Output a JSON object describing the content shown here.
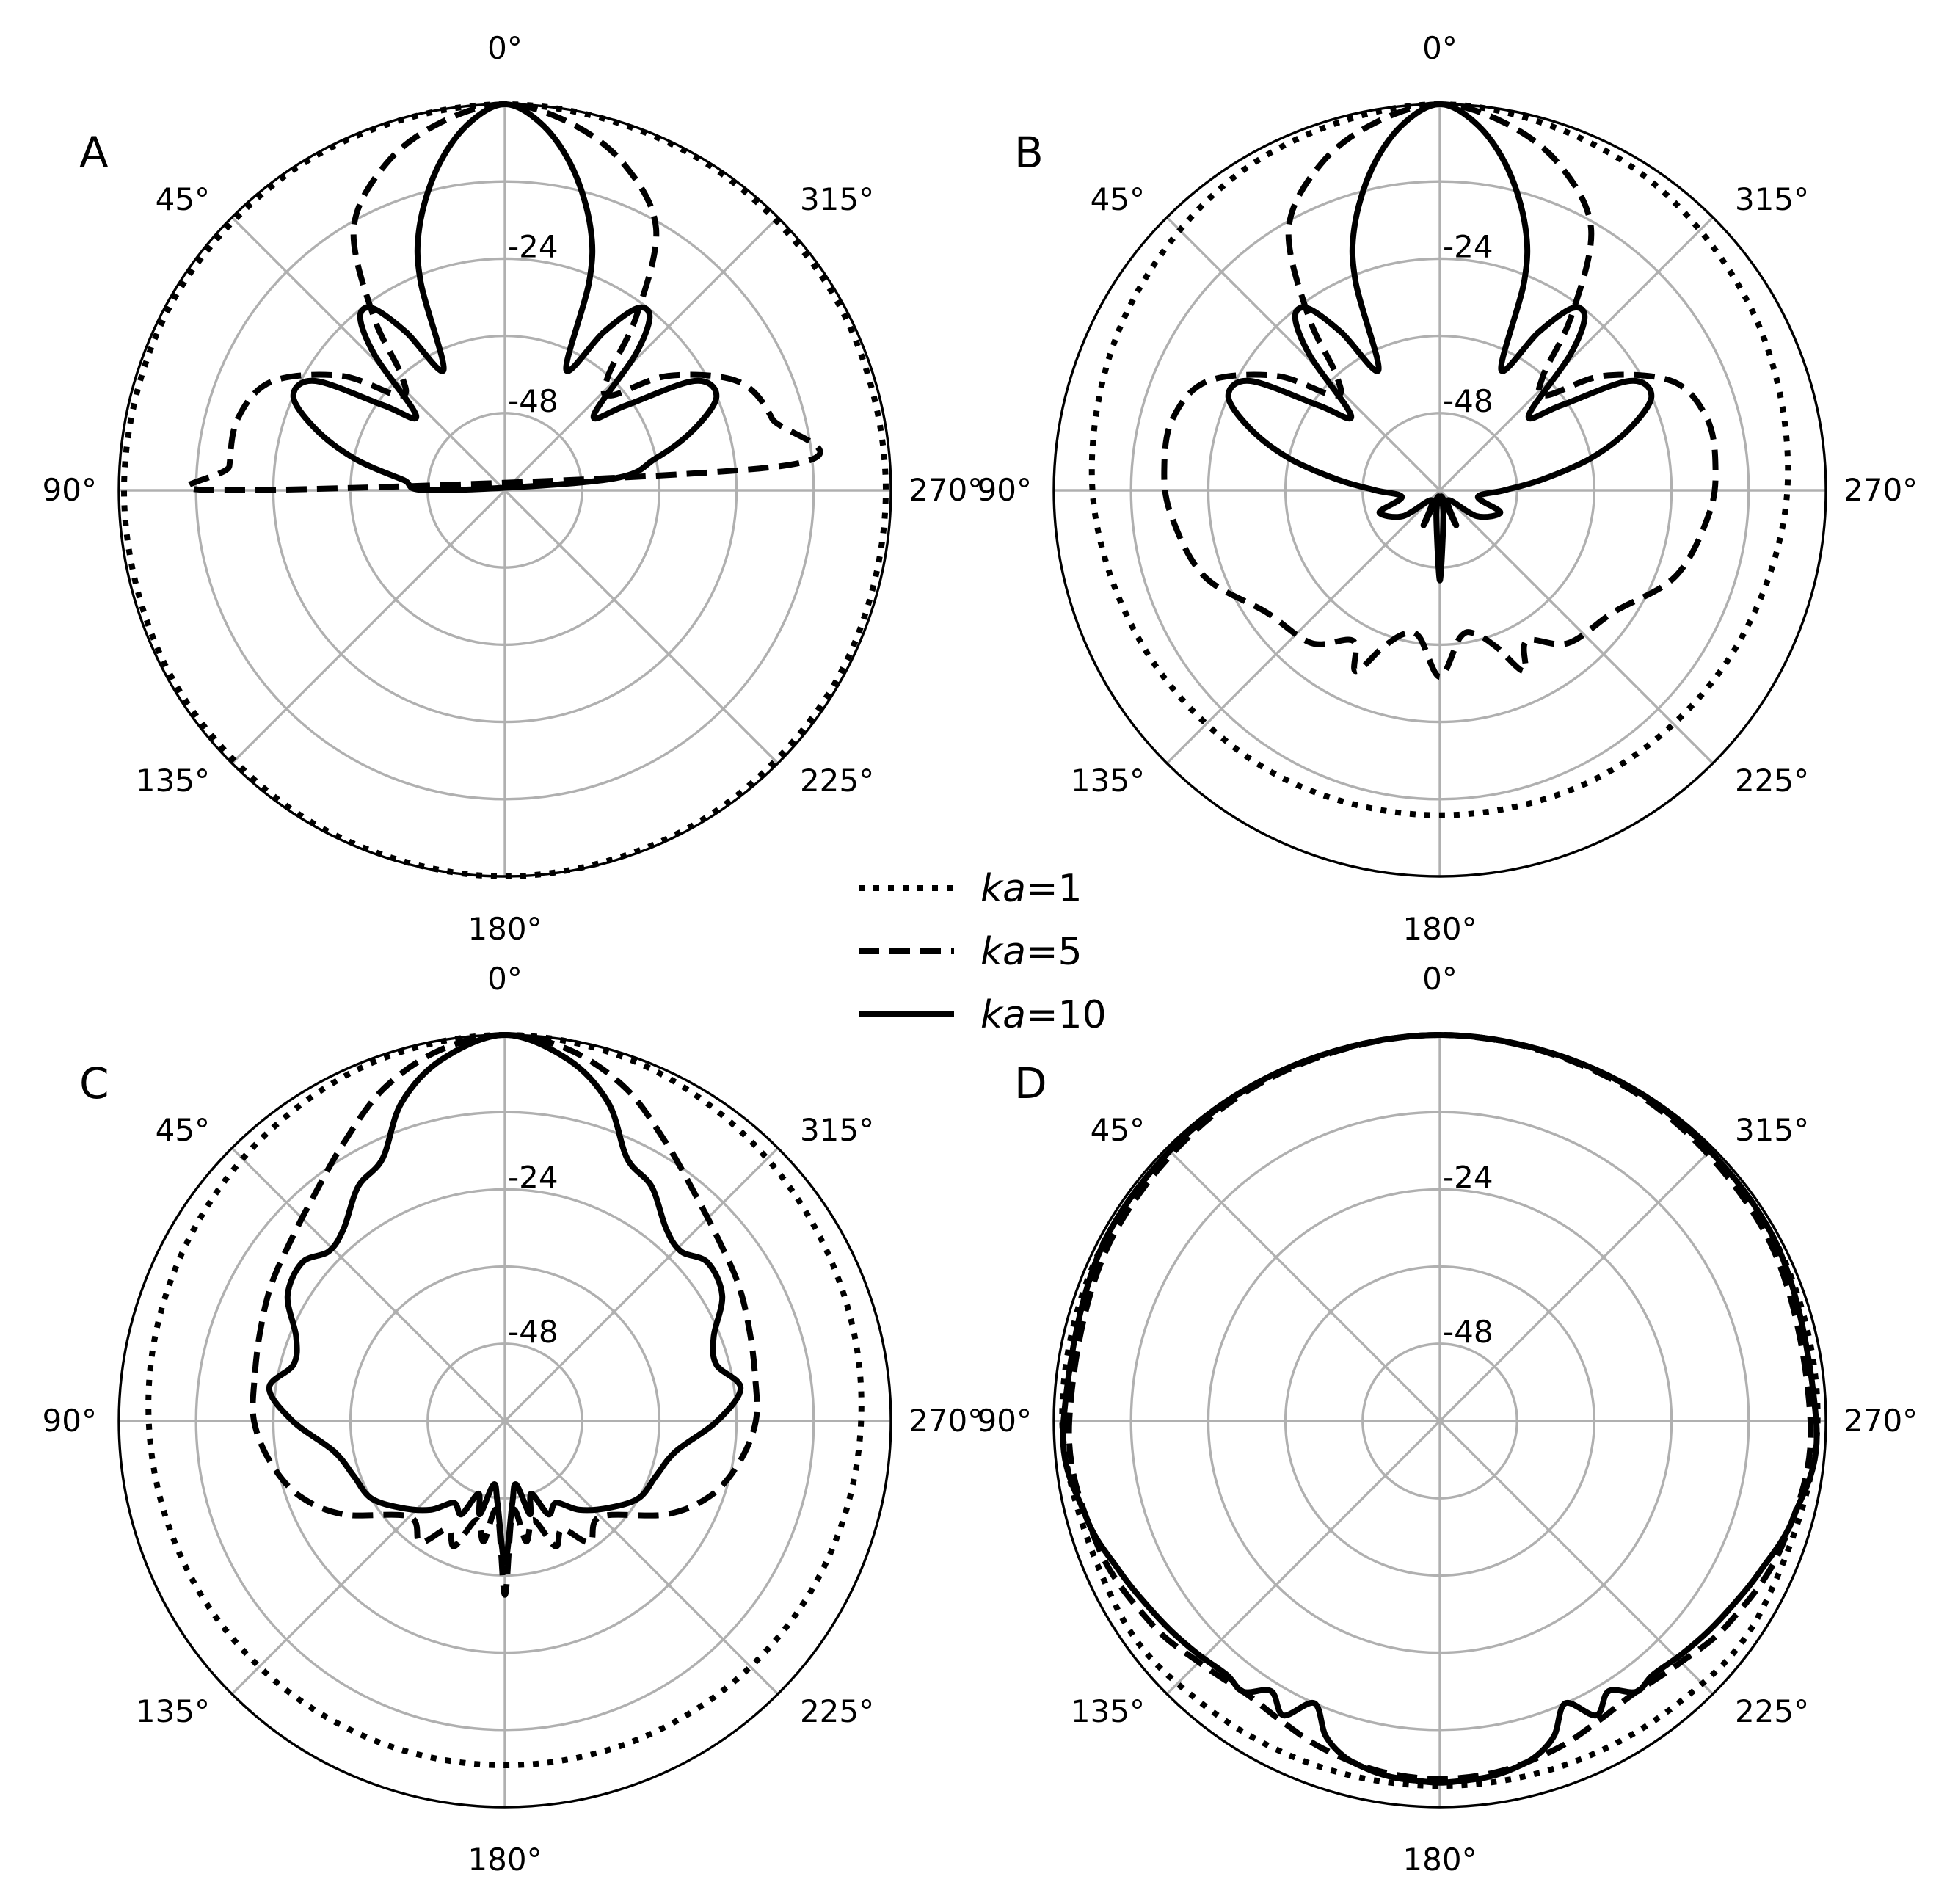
{
  "chart_data": {
    "type": "polar-line",
    "rlim": [
      -60,
      0
    ],
    "r_ticks": [
      -72,
      -60,
      -48,
      -36,
      -24,
      -12
    ],
    "r_tick_labels_shown": [
      "-24",
      "-48"
    ],
    "theta_zero": "top",
    "theta_direction": "counterclockwise",
    "theta_tick_labels": [
      "0°",
      "45°",
      "90°",
      "135°",
      "180°",
      "225°",
      "270°",
      "315°"
    ],
    "grid": true,
    "legend": {
      "position": "center",
      "entries": [
        {
          "label_prefix": "ka",
          "label_value": "=1",
          "style": "dotted"
        },
        {
          "label_prefix": "ka",
          "label_value": "=5",
          "style": "dashed"
        },
        {
          "label_prefix": "ka",
          "label_value": "=10",
          "style": "solid"
        }
      ]
    },
    "panels": [
      {
        "label": "A",
        "series": [
          {
            "name": "ka=1",
            "style": "dotted",
            "theta": [
              0,
              30,
              60,
              90,
              120,
              150,
              180
            ],
            "r_db": [
              0,
              -0.3,
              -0.6,
              -0.8,
              -0.6,
              -0.3,
              0
            ]
          },
          {
            "name": "ka=5",
            "style": "dashed",
            "theta": [
              0,
              10,
              20,
              30,
              37,
              42,
              48,
              55,
              65,
              75,
              85,
              90
            ],
            "r_db": [
              0,
              -2,
              -6,
              -13,
              -26,
              -36,
              -38,
              -29,
              -20,
              -17,
              -17,
              -17
            ]
          },
          {
            "name": "ka=10",
            "style": "solid",
            "theta": [
              0,
              6,
              12,
              18,
              22,
              27,
              32,
              36,
              40,
              44,
              50,
              55,
              60,
              66,
              72,
              78,
              84,
              90
            ],
            "r_db": [
              0,
              -3,
              -9,
              -17,
              -25,
              -39,
              -31,
              -25,
              -25,
              -31,
              -42,
              -37,
              -26,
              -24,
              -29,
              -36,
              -44,
              -49
            ]
          }
        ]
      },
      {
        "label": "B",
        "series": [
          {
            "name": "ka=1",
            "style": "dotted",
            "theta": [
              0,
              30,
              60,
              90,
              120,
              150,
              180
            ],
            "r_db": [
              0,
              -1.5,
              -4,
              -6,
              -8,
              -9,
              -9.5
            ]
          },
          {
            "name": "ka=5",
            "style": "dashed",
            "theta": [
              0,
              10,
              20,
              30,
              37,
              42,
              48,
              55,
              65,
              75,
              85,
              95,
              110,
              125,
              140,
              150,
              155,
              160,
              166,
              172,
              180
            ],
            "r_db": [
              0,
              -2,
              -6,
              -13,
              -26,
              -36,
              -38,
              -29,
              -20,
              -17,
              -17,
              -18,
              -21,
              -27,
              -29,
              -33,
              -29,
              -34,
              -37,
              -37,
              -31
            ]
          },
          {
            "name": "ka=10",
            "style": "solid",
            "theta": [
              0,
              6,
              12,
              18,
              22,
              27,
              32,
              36,
              40,
              44,
              50,
              55,
              60,
              66,
              72,
              78,
              84,
              90,
              100,
              110,
              125,
              140,
              155,
              165,
              172,
              180
            ],
            "r_db": [
              0,
              -3,
              -9,
              -17,
              -25,
              -39,
              -31,
              -25,
              -25,
              -31,
              -42,
              -37,
              -26,
              -24,
              -29,
              -36,
              -44,
              -50,
              -54,
              -50,
              -53,
              -58,
              -54,
              -59,
              -56,
              -46
            ]
          }
        ]
      },
      {
        "label": "C",
        "series": [
          {
            "name": "ka=1",
            "style": "dotted",
            "theta": [
              0,
              20,
              40,
              60,
              80,
              100,
              120,
              140,
              160,
              180
            ],
            "r_db": [
              0,
              -0.6,
              -2,
              -3.3,
              -4.2,
              -5,
              -5.6,
              -6.1,
              -6.4,
              -6.5
            ]
          },
          {
            "name": "ka=5",
            "style": "dashed",
            "theta": [
              0,
              10,
              20,
              30,
              40,
              50,
              60,
              70,
              80,
              90,
              100,
              110,
              120,
              135,
              145,
              152,
              158,
              164,
              170,
              175,
              180
            ],
            "r_db": [
              0,
              -1.5,
              -5,
              -10,
              -14,
              -16.5,
              -18,
              -19.5,
              -20.5,
              -21,
              -23,
              -26,
              -31,
              -39,
              -37,
              -41,
              -39,
              -44,
              -41,
              -46,
              -33
            ]
          },
          {
            "name": "ka=10",
            "style": "solid",
            "theta": [
              0,
              10,
              18,
              25,
              32,
              40,
              46,
              52,
              60,
              68,
              75,
              82,
              90,
              100,
              110,
              120,
              130,
              140,
              148,
              155,
              160,
              165,
              170,
              175,
              180
            ],
            "r_db": [
              0,
              -3,
              -8,
              -15,
              -17,
              -21,
              -22,
              -20,
              -21,
              -25,
              -26,
              -23,
              -27,
              -33,
              -35,
              -36,
              -39,
              -42,
              -45,
              -44,
              -48,
              -45,
              -50,
              -47,
              -38
            ]
          }
        ]
      },
      {
        "label": "D",
        "series": [
          {
            "name": "ka=1",
            "style": "dotted",
            "theta": [
              0,
              30,
              60,
              90,
              120,
              140,
              160,
              180
            ],
            "r_db": [
              0,
              -0.3,
              -0.8,
              -1.3,
              -2,
              -2.6,
              -3.1,
              -3.3
            ]
          },
          {
            "name": "ka=5",
            "style": "dashed",
            "theta": [
              0,
              30,
              60,
              90,
              110,
              125,
              135,
              145,
              152,
              160,
              170,
              180
            ],
            "r_db": [
              0,
              -0.6,
              -1.6,
              -2.4,
              -3.4,
              -5.2,
              -7,
              -8,
              -7.3,
              -6,
              -4.8,
              -4.4
            ]
          },
          {
            "name": "ka=10",
            "style": "solid",
            "theta": [
              0,
              30,
              60,
              90,
              105,
              115,
              122,
              128,
              134,
              140,
              144,
              148,
              152,
              156,
              160,
              164,
              168,
              172,
              176,
              180
            ],
            "r_db": [
              0,
              -0.3,
              -0.8,
              -1.5,
              -3,
              -5,
              -6.2,
              -7,
              -7.8,
              -8.5,
              -8,
              -10.5,
              -8.2,
              -12,
              -8,
              -5.8,
              -4.8,
              -4.2,
              -4,
              -3.8
            ]
          }
        ]
      }
    ]
  }
}
